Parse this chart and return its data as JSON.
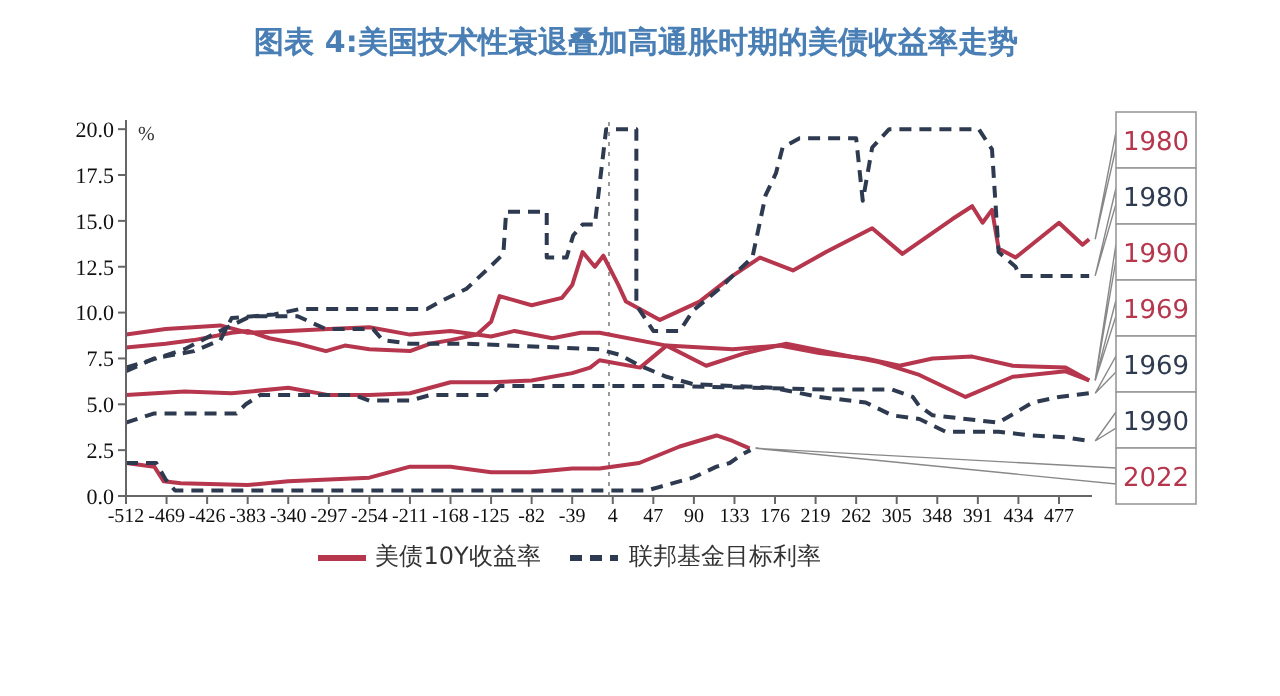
{
  "chart_data": {
    "type": "line",
    "title": "图表 4:美国技术性衰退叠加高通胀时期的美债收益率走势",
    "ylabel": "%",
    "xlim": [
      -512,
      512
    ],
    "xticks": [
      -512,
      -469,
      -426,
      -383,
      -340,
      -297,
      -254,
      -211,
      -168,
      -125,
      -82,
      -39,
      4,
      47,
      90,
      133,
      176,
      219,
      262,
      305,
      348,
      391,
      434,
      477
    ],
    "ylim": [
      0,
      20.5
    ],
    "yticks": [
      {
        "value": 0,
        "label": "0.0"
      },
      2.5,
      {
        "value": 5,
        "label": "5.0"
      },
      7.5,
      {
        "value": 10,
        "label": "10.0"
      },
      12.5,
      {
        "value": 15,
        "label": "15.0"
      },
      17.5,
      {
        "value": 20,
        "label": "20.0"
      }
    ],
    "legend": "bottom",
    "marker": "none",
    "ref_lines": [
      {
        "axis": "x",
        "value": 0,
        "color": "#999999",
        "line_style": "dotted"
      }
    ],
    "series": [
      {
        "name": "美债10Y收益率",
        "color": "#b5364d",
        "line_style": "solid",
        "x": [
          -512,
          -470,
          -440,
          -400,
          -383,
          -360,
          -330,
          -300,
          -280,
          -254,
          -211,
          -190,
          -168,
          -140,
          -125,
          -116,
          -82,
          -50,
          -39,
          -28,
          -15,
          -6,
          10,
          18,
          54,
          96,
          131,
          160,
          195,
          230,
          279,
          311,
          364,
          385,
          396,
          406,
          413,
          431,
          477,
          502,
          509
        ],
        "values": [
          8.1,
          8.3,
          8.5,
          8.9,
          9.0,
          8.6,
          8.3,
          7.9,
          8.2,
          8.0,
          7.9,
          8.3,
          8.5,
          8.8,
          9.5,
          10.9,
          10.4,
          10.8,
          11.5,
          13.3,
          12.5,
          13.1,
          11.5,
          10.6,
          9.6,
          10.6,
          12.0,
          13.0,
          12.3,
          13.3,
          14.6,
          13.2,
          15.1,
          15.8,
          14.9,
          15.6,
          13.5,
          13.0,
          14.9,
          13.7,
          14.0
        ]
      },
      {
        "name": "联邦基金目标利率",
        "color": "#2e3a4f",
        "line_style": "dashed",
        "x": [
          -512,
          -482,
          -440,
          -412,
          -400,
          -355,
          -327,
          -193,
          -179,
          -151,
          -126,
          -112,
          -109,
          -66,
          -66,
          -45,
          -38,
          -28,
          -15,
          -3,
          29,
          29,
          47,
          75,
          89,
          117,
          131,
          152,
          166,
          177,
          184,
          202,
          262,
          269,
          279,
          297,
          392,
          406,
          413,
          431,
          435,
          509
        ],
        "values": [
          6.8,
          7.5,
          7.9,
          8.5,
          9.7,
          9.9,
          10.2,
          10.2,
          10.6,
          11.3,
          12.5,
          13.2,
          15.5,
          15.5,
          13.0,
          13.0,
          14.2,
          14.8,
          14.8,
          20.0,
          20.0,
          10.4,
          9.0,
          9.0,
          10.1,
          11.3,
          12.0,
          13.0,
          16.4,
          17.6,
          19.0,
          19.5,
          19.5,
          16.1,
          19.0,
          20.0,
          20.0,
          18.9,
          13.3,
          12.5,
          12.0,
          12.0
        ]
      },
      {
        "color": "#b5364d",
        "line_style": "solid",
        "x": [
          -512,
          -470,
          -412,
          -383,
          -340,
          -297,
          -254,
          -211,
          -168,
          -125,
          -100,
          -60,
          -30,
          -10,
          61,
          103,
          145,
          188,
          237,
          286,
          329,
          378,
          428,
          484,
          509
        ],
        "values": [
          8.8,
          9.1,
          9.3,
          8.9,
          9.0,
          9.1,
          9.2,
          8.8,
          9.0,
          8.7,
          9.0,
          8.6,
          8.9,
          8.9,
          8.2,
          7.1,
          7.8,
          8.3,
          7.8,
          7.3,
          6.6,
          5.4,
          6.5,
          6.8,
          6.3
        ]
      },
      {
        "color": "#b5364d",
        "line_style": "solid",
        "x": [
          -512,
          -450,
          -400,
          -340,
          -297,
          -254,
          -211,
          -168,
          -125,
          -82,
          -39,
          -20,
          -10,
          33,
          61,
          131,
          181,
          223,
          272,
          308,
          343,
          385,
          428,
          484,
          509
        ],
        "values": [
          5.5,
          5.7,
          5.6,
          5.9,
          5.5,
          5.5,
          5.6,
          6.2,
          6.2,
          6.3,
          6.7,
          7.0,
          7.4,
          7.0,
          8.2,
          8.0,
          8.2,
          7.8,
          7.5,
          7.1,
          7.5,
          7.6,
          7.1,
          7.0,
          6.3
        ]
      },
      {
        "color": "#2e3a4f",
        "line_style": "dashed",
        "x": [
          -512,
          -482,
          -395,
          -385,
          -370,
          -270,
          -254,
          -211,
          -190,
          -125,
          -116,
          61,
          152,
          237,
          300,
          322,
          329,
          343,
          413,
          449,
          477,
          509
        ],
        "values": [
          4.0,
          4.5,
          4.5,
          5.0,
          5.5,
          5.5,
          5.2,
          5.2,
          5.5,
          5.5,
          6.0,
          6.0,
          5.9,
          5.8,
          5.8,
          5.4,
          4.9,
          4.4,
          4.0,
          5.1,
          5.4,
          5.6
        ]
      },
      {
        "color": "#2e3a4f",
        "line_style": "dashed",
        "x": [
          -512,
          -480,
          -450,
          -420,
          -380,
          -330,
          -300,
          -250,
          -240,
          -211,
          -150,
          -10,
          11,
          33,
          61,
          89,
          131,
          174,
          223,
          272,
          300,
          329,
          357,
          413,
          449,
          484,
          509
        ],
        "values": [
          7.0,
          7.5,
          8.0,
          8.8,
          9.8,
          9.8,
          9.1,
          9.1,
          8.5,
          8.3,
          8.3,
          8.0,
          7.7,
          7.1,
          6.5,
          6.1,
          6.0,
          5.9,
          5.4,
          5.1,
          4.4,
          4.2,
          3.5,
          3.5,
          3.3,
          3.2,
          3.0
        ]
      },
      {
        "color": "#b5364d",
        "line_style": "solid",
        "x": [
          -512,
          -482,
          -472,
          -454,
          -383,
          -340,
          -297,
          -254,
          -211,
          -168,
          -125,
          -82,
          -39,
          -10,
          32,
          75,
          114,
          131,
          149
        ],
        "values": [
          1.8,
          1.6,
          0.8,
          0.7,
          0.6,
          0.8,
          0.9,
          1.0,
          1.6,
          1.6,
          1.3,
          1.3,
          1.5,
          1.5,
          1.8,
          2.7,
          3.3,
          3.0,
          2.6
        ]
      },
      {
        "color": "#2e3a4f",
        "line_style": "dashed",
        "x": [
          -512,
          -480,
          -470,
          -460,
          0,
          40,
          54,
          89,
          114,
          128,
          142,
          150
        ],
        "values": [
          1.8,
          1.8,
          0.9,
          0.3,
          0.3,
          0.3,
          0.5,
          1.0,
          1.6,
          1.8,
          2.3,
          2.5
        ]
      }
    ],
    "annotations": [
      "1980",
      "1980",
      "1990",
      "1969",
      "1969",
      "1990",
      "2022"
    ]
  }
}
